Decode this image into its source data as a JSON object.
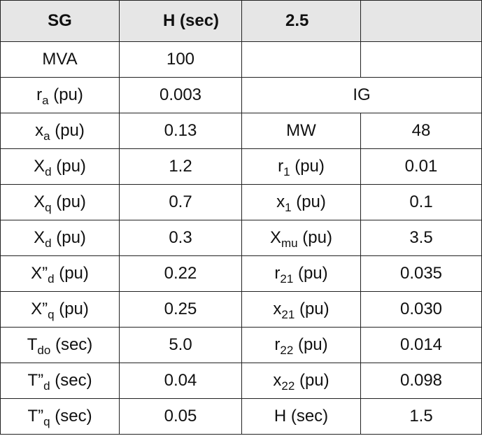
{
  "header": [
    "SG",
    "H (sec)",
    "2.5"
  ],
  "rows": [
    [
      "MVA",
      "100"
    ],
    [
      {
        "base": "r",
        "sub": "a",
        "rest": " (pu)"
      },
      "0.003",
      "IG"
    ],
    [
      {
        "base": "x",
        "sub": "a",
        "rest": " (pu)"
      },
      "0.13",
      "MW",
      "48"
    ],
    [
      {
        "base": "X",
        "sub": "d",
        "rest": " (pu)"
      },
      "1.2",
      {
        "base": "r",
        "sub": "1",
        "rest": " (pu)"
      },
      "0.01"
    ],
    [
      {
        "base": "X",
        "sub": "q",
        "rest": " (pu)"
      },
      "0.7",
      {
        "base": "x",
        "sub": "1",
        "rest": " (pu)"
      },
      "0.1"
    ],
    [
      {
        "base": "X",
        "sub": "d",
        "rest": " (pu)"
      },
      "0.3",
      {
        "base": "X",
        "sub": "mu",
        "rest": " (pu)"
      },
      "3.5"
    ],
    [
      {
        "base": "X”",
        "sub": "d",
        "rest": " (pu)"
      },
      "0.22",
      {
        "base": "r",
        "sub": "21",
        "rest": " (pu)"
      },
      "0.035"
    ],
    [
      {
        "base": "X”",
        "sub": "q",
        "rest": " (pu)"
      },
      "0.25",
      {
        "base": "x",
        "sub": "21",
        "rest": " (pu)"
      },
      "0.030"
    ],
    [
      {
        "base": "T",
        "sub": "do",
        "rest": " (sec)"
      },
      "5.0",
      {
        "base": "r",
        "sub": "22",
        "rest": " (pu)"
      },
      "0.014"
    ],
    [
      {
        "base": "T”",
        "sub": "d",
        "rest": " (sec)"
      },
      "0.04",
      {
        "base": "x",
        "sub": "22",
        "rest": " (pu)"
      },
      "0.098"
    ],
    [
      {
        "base": "T”",
        "sub": "q",
        "rest": " (sec)"
      },
      "0.05",
      "H (sec)",
      "1.5"
    ]
  ]
}
